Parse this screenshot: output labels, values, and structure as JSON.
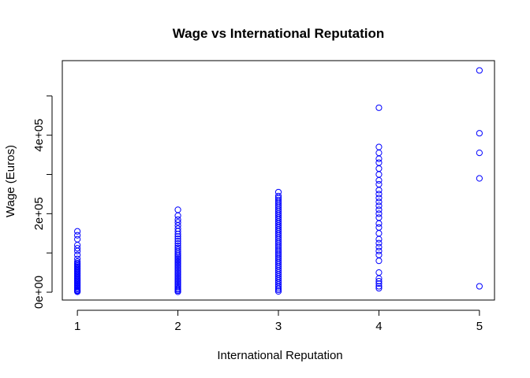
{
  "chart_data": {
    "type": "scatter",
    "title": "Wage vs International Reputation",
    "xlabel": "International Reputation",
    "ylabel": "Wage (Euros)",
    "xlim": [
      0.85,
      5.15
    ],
    "ylim": [
      -20000,
      590000
    ],
    "x_ticks": [
      1,
      2,
      3,
      4,
      5
    ],
    "x_tick_labels": [
      "1",
      "2",
      "3",
      "4",
      "5"
    ],
    "y_ticks": [
      0,
      100000,
      200000,
      300000,
      400000,
      500000
    ],
    "y_tick_labels": [
      "0e+00",
      "",
      "2e+05",
      "",
      "4e+05",
      ""
    ],
    "grid": false,
    "marker": "open-circle",
    "color": "#0000ff",
    "series": [
      {
        "points": [
          {
            "x": 1,
            "y": 1000
          },
          {
            "x": 1,
            "y": 3000
          },
          {
            "x": 1,
            "y": 5000
          },
          {
            "x": 1,
            "y": 8000
          },
          {
            "x": 1,
            "y": 11000
          },
          {
            "x": 1,
            "y": 14000
          },
          {
            "x": 1,
            "y": 17000
          },
          {
            "x": 1,
            "y": 20000
          },
          {
            "x": 1,
            "y": 23000
          },
          {
            "x": 1,
            "y": 26000
          },
          {
            "x": 1,
            "y": 29000
          },
          {
            "x": 1,
            "y": 32000
          },
          {
            "x": 1,
            "y": 35000
          },
          {
            "x": 1,
            "y": 38000
          },
          {
            "x": 1,
            "y": 41000
          },
          {
            "x": 1,
            "y": 44000
          },
          {
            "x": 1,
            "y": 47000
          },
          {
            "x": 1,
            "y": 50000
          },
          {
            "x": 1,
            "y": 53000
          },
          {
            "x": 1,
            "y": 56000
          },
          {
            "x": 1,
            "y": 59000
          },
          {
            "x": 1,
            "y": 62000
          },
          {
            "x": 1,
            "y": 65000
          },
          {
            "x": 1,
            "y": 68000
          },
          {
            "x": 1,
            "y": 71000
          },
          {
            "x": 1,
            "y": 74000
          },
          {
            "x": 1,
            "y": 78000
          },
          {
            "x": 1,
            "y": 85000
          },
          {
            "x": 1,
            "y": 95000
          },
          {
            "x": 1,
            "y": 105000
          },
          {
            "x": 1,
            "y": 112000
          },
          {
            "x": 1,
            "y": 120000
          },
          {
            "x": 1,
            "y": 135000
          },
          {
            "x": 1,
            "y": 145000
          },
          {
            "x": 1,
            "y": 155000
          },
          {
            "x": 2,
            "y": 1000
          },
          {
            "x": 2,
            "y": 4000
          },
          {
            "x": 2,
            "y": 7000
          },
          {
            "x": 2,
            "y": 10000
          },
          {
            "x": 2,
            "y": 14000
          },
          {
            "x": 2,
            "y": 18000
          },
          {
            "x": 2,
            "y": 22000
          },
          {
            "x": 2,
            "y": 26000
          },
          {
            "x": 2,
            "y": 30000
          },
          {
            "x": 2,
            "y": 34000
          },
          {
            "x": 2,
            "y": 38000
          },
          {
            "x": 2,
            "y": 42000
          },
          {
            "x": 2,
            "y": 46000
          },
          {
            "x": 2,
            "y": 50000
          },
          {
            "x": 2,
            "y": 54000
          },
          {
            "x": 2,
            "y": 58000
          },
          {
            "x": 2,
            "y": 62000
          },
          {
            "x": 2,
            "y": 66000
          },
          {
            "x": 2,
            "y": 70000
          },
          {
            "x": 2,
            "y": 74000
          },
          {
            "x": 2,
            "y": 78000
          },
          {
            "x": 2,
            "y": 82000
          },
          {
            "x": 2,
            "y": 86000
          },
          {
            "x": 2,
            "y": 90000
          },
          {
            "x": 2,
            "y": 94000
          },
          {
            "x": 2,
            "y": 98000
          },
          {
            "x": 2,
            "y": 103000
          },
          {
            "x": 2,
            "y": 108000
          },
          {
            "x": 2,
            "y": 113000
          },
          {
            "x": 2,
            "y": 118000
          },
          {
            "x": 2,
            "y": 124000
          },
          {
            "x": 2,
            "y": 130000
          },
          {
            "x": 2,
            "y": 136000
          },
          {
            "x": 2,
            "y": 142000
          },
          {
            "x": 2,
            "y": 148000
          },
          {
            "x": 2,
            "y": 155000
          },
          {
            "x": 2,
            "y": 162000
          },
          {
            "x": 2,
            "y": 170000
          },
          {
            "x": 2,
            "y": 178000
          },
          {
            "x": 2,
            "y": 185000
          },
          {
            "x": 2,
            "y": 195000
          },
          {
            "x": 2,
            "y": 210000
          },
          {
            "x": 3,
            "y": 2000
          },
          {
            "x": 3,
            "y": 6000
          },
          {
            "x": 3,
            "y": 10000
          },
          {
            "x": 3,
            "y": 15000
          },
          {
            "x": 3,
            "y": 20000
          },
          {
            "x": 3,
            "y": 25000
          },
          {
            "x": 3,
            "y": 30000
          },
          {
            "x": 3,
            "y": 35000
          },
          {
            "x": 3,
            "y": 40000
          },
          {
            "x": 3,
            "y": 45000
          },
          {
            "x": 3,
            "y": 50000
          },
          {
            "x": 3,
            "y": 55000
          },
          {
            "x": 3,
            "y": 60000
          },
          {
            "x": 3,
            "y": 65000
          },
          {
            "x": 3,
            "y": 70000
          },
          {
            "x": 3,
            "y": 75000
          },
          {
            "x": 3,
            "y": 80000
          },
          {
            "x": 3,
            "y": 85000
          },
          {
            "x": 3,
            "y": 90000
          },
          {
            "x": 3,
            "y": 95000
          },
          {
            "x": 3,
            "y": 100000
          },
          {
            "x": 3,
            "y": 105000
          },
          {
            "x": 3,
            "y": 110000
          },
          {
            "x": 3,
            "y": 115000
          },
          {
            "x": 3,
            "y": 120000
          },
          {
            "x": 3,
            "y": 125000
          },
          {
            "x": 3,
            "y": 130000
          },
          {
            "x": 3,
            "y": 135000
          },
          {
            "x": 3,
            "y": 140000
          },
          {
            "x": 3,
            "y": 145000
          },
          {
            "x": 3,
            "y": 150000
          },
          {
            "x": 3,
            "y": 155000
          },
          {
            "x": 3,
            "y": 160000
          },
          {
            "x": 3,
            "y": 165000
          },
          {
            "x": 3,
            "y": 170000
          },
          {
            "x": 3,
            "y": 175000
          },
          {
            "x": 3,
            "y": 180000
          },
          {
            "x": 3,
            "y": 185000
          },
          {
            "x": 3,
            "y": 190000
          },
          {
            "x": 3,
            "y": 195000
          },
          {
            "x": 3,
            "y": 200000
          },
          {
            "x": 3,
            "y": 205000
          },
          {
            "x": 3,
            "y": 210000
          },
          {
            "x": 3,
            "y": 215000
          },
          {
            "x": 3,
            "y": 220000
          },
          {
            "x": 3,
            "y": 225000
          },
          {
            "x": 3,
            "y": 230000
          },
          {
            "x": 3,
            "y": 235000
          },
          {
            "x": 3,
            "y": 240000
          },
          {
            "x": 3,
            "y": 245000
          },
          {
            "x": 3,
            "y": 255000
          },
          {
            "x": 4,
            "y": 10000
          },
          {
            "x": 4,
            "y": 15000
          },
          {
            "x": 4,
            "y": 22000
          },
          {
            "x": 4,
            "y": 28000
          },
          {
            "x": 4,
            "y": 35000
          },
          {
            "x": 4,
            "y": 50000
          },
          {
            "x": 4,
            "y": 80000
          },
          {
            "x": 4,
            "y": 95000
          },
          {
            "x": 4,
            "y": 105000
          },
          {
            "x": 4,
            "y": 115000
          },
          {
            "x": 4,
            "y": 125000
          },
          {
            "x": 4,
            "y": 135000
          },
          {
            "x": 4,
            "y": 150000
          },
          {
            "x": 4,
            "y": 165000
          },
          {
            "x": 4,
            "y": 175000
          },
          {
            "x": 4,
            "y": 190000
          },
          {
            "x": 4,
            "y": 200000
          },
          {
            "x": 4,
            "y": 210000
          },
          {
            "x": 4,
            "y": 220000
          },
          {
            "x": 4,
            "y": 230000
          },
          {
            "x": 4,
            "y": 240000
          },
          {
            "x": 4,
            "y": 250000
          },
          {
            "x": 4,
            "y": 260000
          },
          {
            "x": 4,
            "y": 275000
          },
          {
            "x": 4,
            "y": 285000
          },
          {
            "x": 4,
            "y": 300000
          },
          {
            "x": 4,
            "y": 315000
          },
          {
            "x": 4,
            "y": 330000
          },
          {
            "x": 4,
            "y": 340000
          },
          {
            "x": 4,
            "y": 355000
          },
          {
            "x": 4,
            "y": 370000
          },
          {
            "x": 4,
            "y": 470000
          },
          {
            "x": 5,
            "y": 15000
          },
          {
            "x": 5,
            "y": 290000
          },
          {
            "x": 5,
            "y": 355000
          },
          {
            "x": 5,
            "y": 405000
          },
          {
            "x": 5,
            "y": 565000
          }
        ]
      }
    ]
  }
}
